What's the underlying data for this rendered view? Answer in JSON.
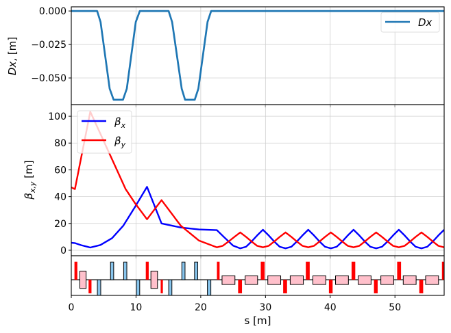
{
  "chart_data": [
    {
      "type": "line",
      "panel": "dispersion",
      "ylabel": {
        "symbol": "Dx",
        "unit": ", [m]"
      },
      "xlim": [
        0,
        57.6
      ],
      "ylim": [
        -0.0699,
        0.0031
      ],
      "yticks": [
        {
          "v": 0,
          "label": "0.000"
        },
        {
          "v": -0.025,
          "label": "−0.025"
        },
        {
          "v": -0.05,
          "label": "−0.050"
        }
      ],
      "grid": true,
      "legend": {
        "placement": "top-right",
        "entries": [
          {
            "label": "Dx",
            "color": "#1f77b4"
          }
        ]
      },
      "series": [
        {
          "name": "Dx",
          "color": "#1f77b4",
          "s": [
            0,
            3.99,
            4.52,
            5.93,
            6.54,
            7.98,
            8.58,
            9.96,
            10.59,
            15.04,
            15.57,
            17.06,
            17.58,
            19.07,
            19.63,
            21.05,
            21.61,
            57.6
          ],
          "y": [
            0,
            0,
            -0.0082,
            -0.058,
            -0.0663,
            -0.0663,
            -0.058,
            -0.0082,
            0,
            0,
            -0.0082,
            -0.058,
            -0.0663,
            -0.0663,
            -0.058,
            -0.0082,
            0,
            0
          ]
        }
      ]
    },
    {
      "type": "line",
      "panel": "beta",
      "ylabel": {
        "symbol": "β",
        "sub": "x,y",
        "unit": " [m]"
      },
      "xlim": [
        0,
        57.6
      ],
      "ylim": [
        -4.1,
        108.7
      ],
      "yticks": [
        {
          "v": 0,
          "label": "0"
        },
        {
          "v": 20,
          "label": "20"
        },
        {
          "v": 40,
          "label": "40"
        },
        {
          "v": 60,
          "label": "60"
        },
        {
          "v": 80,
          "label": "80"
        },
        {
          "v": 100,
          "label": "100"
        }
      ],
      "grid": true,
      "legend": {
        "placement": "top-left",
        "entries": [
          {
            "symbol": "β",
            "sub": "x",
            "color": "#0000ff"
          },
          {
            "symbol": "β",
            "sub": "y",
            "color": "#ff0000"
          }
        ]
      },
      "series": [
        {
          "name": "beta_x",
          "color": "#0000ff",
          "s": [
            0,
            0.6,
            1.5,
            2.93,
            4.5,
            6.3,
            8.05,
            9.8,
            11.7,
            13.95,
            16.9,
            19.7,
            22.5,
            23.6,
            25.0,
            26.1,
            27.0,
            27.85,
            28.7,
            29.6,
            30.5,
            31.35,
            32.2,
            33.1,
            34.0,
            34.85,
            35.7,
            36.6,
            37.5,
            38.35,
            39.2,
            40.1,
            41.0,
            41.85,
            42.7,
            43.6,
            44.5,
            45.35,
            46.2,
            47.1,
            48.0,
            48.85,
            49.7,
            50.6,
            51.5,
            52.35,
            53.2,
            54.1,
            55.0,
            55.85,
            56.7,
            57.6
          ],
          "y": [
            5.6,
            5.3,
            3.8,
            2.0,
            3.9,
            9.0,
            18.4,
            32,
            47.3,
            20,
            17,
            15.5,
            15,
            9.8,
            3.4,
            1.4,
            2.6,
            6.5,
            11,
            15.3,
            11,
            6.5,
            2.6,
            1.4,
            2.6,
            6.5,
            11,
            15.3,
            11,
            6.5,
            2.6,
            1.4,
            2.6,
            6.5,
            11,
            15.3,
            11,
            6.5,
            2.6,
            1.4,
            2.6,
            6.5,
            11,
            15.3,
            11,
            6.5,
            2.6,
            1.4,
            2.6,
            6.5,
            11,
            15.3
          ]
        },
        {
          "name": "beta_y",
          "color": "#ff0000",
          "s": [
            0,
            0.56,
            2.93,
            4.87,
            6.64,
            8.4,
            9.8,
            11.7,
            13.95,
            16.9,
            19.7,
            22.5,
            23.4,
            24.3,
            25.2,
            26.1,
            27.0,
            27.85,
            28.7,
            29.6,
            30.5,
            31.35,
            32.2,
            33.1,
            34.0,
            34.85,
            35.7,
            36.6,
            37.5,
            38.35,
            39.2,
            40.1,
            41.0,
            41.85,
            42.7,
            43.6,
            44.5,
            45.35,
            46.2,
            47.1,
            48.0,
            48.85,
            49.7,
            50.6,
            51.5,
            52.35,
            53.2,
            54.1,
            55.0,
            55.85,
            56.7,
            57.6
          ],
          "y": [
            47,
            45.6,
            103.4,
            83,
            64.3,
            45.6,
            35.4,
            23.1,
            37.4,
            18.4,
            7.3,
            2.2,
            3.3,
            6.5,
            10,
            13.3,
            10,
            6.5,
            3.3,
            2.2,
            3.3,
            6.5,
            10,
            13.3,
            10,
            6.5,
            3.3,
            2.2,
            3.3,
            6.5,
            10,
            13.3,
            10,
            6.5,
            3.3,
            2.2,
            3.3,
            6.5,
            10,
            13.3,
            10,
            6.5,
            3.3,
            2.2,
            3.3,
            6.5,
            10,
            13.3,
            10,
            6.5,
            3.3,
            2.2
          ]
        }
      ]
    },
    {
      "type": "lattice",
      "panel": "lattice",
      "xlabel": "s [m]",
      "xlim": [
        0,
        57.6
      ],
      "ylim": [
        -0.865,
        1.33
      ],
      "xticks": [
        {
          "v": 0,
          "label": "0"
        },
        {
          "v": 10,
          "label": "10"
        },
        {
          "v": 20,
          "label": "20"
        },
        {
          "v": 30,
          "label": "30"
        },
        {
          "v": 40,
          "label": "40"
        },
        {
          "v": 50,
          "label": "50"
        }
      ],
      "colors": {
        "quadrupole": "#ff0000",
        "dipole": "#87c4ec",
        "cavity": "#ffc0cb"
      },
      "elements": [
        {
          "kind": "quadrupole",
          "s0": 0.49,
          "s1": 0.94,
          "lo": 0,
          "hi": 1
        },
        {
          "kind": "cavity",
          "s0": 1.32,
          "s1": 2.29,
          "lo": -0.48,
          "hi": 0.48
        },
        {
          "kind": "quadrupole",
          "s0": 2.67,
          "s1": 3.12,
          "lo": -0.75,
          "hi": 0
        },
        {
          "kind": "dipole",
          "s0": 4.03,
          "s1": 4.55,
          "lo": -0.9,
          "hi": 0
        },
        {
          "kind": "dipole",
          "s0": 6.06,
          "s1": 6.55,
          "lo": 0,
          "hi": 0.98
        },
        {
          "kind": "dipole",
          "s0": 8.09,
          "s1": 8.58,
          "lo": 0,
          "hi": 0.98
        },
        {
          "kind": "dipole",
          "s0": 10.05,
          "s1": 10.57,
          "lo": -0.9,
          "hi": 0
        },
        {
          "kind": "quadrupole",
          "s0": 11.51,
          "s1": 11.96,
          "lo": 0,
          "hi": 1
        },
        {
          "kind": "cavity",
          "s0": 12.3,
          "s1": 13.32,
          "lo": -0.48,
          "hi": 0.48
        },
        {
          "kind": "quadrupole",
          "s0": 13.81,
          "s1": 14.15,
          "lo": -0.75,
          "hi": 0
        },
        {
          "kind": "dipole",
          "s0": 15.05,
          "s1": 15.54,
          "lo": -0.9,
          "hi": 0
        },
        {
          "kind": "dipole",
          "s0": 17.08,
          "s1": 17.57,
          "lo": 0,
          "hi": 0.98
        },
        {
          "kind": "dipole",
          "s0": 19.04,
          "s1": 19.53,
          "lo": 0,
          "hi": 0.98
        },
        {
          "kind": "dipole",
          "s0": 21.03,
          "s1": 21.56,
          "lo": -0.9,
          "hi": 0
        },
        {
          "kind": "quadrupole",
          "s0": 22.5,
          "s1": 22.91,
          "lo": 0,
          "hi": 1
        },
        {
          "kind": "cavity",
          "s0": 23.29,
          "s1": 25.28,
          "lo": -0.26,
          "hi": 0.22
        },
        {
          "kind": "quadrupole",
          "s0": 25.77,
          "s1": 26.37,
          "lo": -0.75,
          "hi": 0
        },
        {
          "kind": "cavity",
          "s0": 26.86,
          "s1": 28.78,
          "lo": -0.26,
          "hi": 0.22
        },
        {
          "kind": "quadrupole",
          "s0": 29.27,
          "s1": 29.87,
          "lo": 0,
          "hi": 1
        },
        {
          "kind": "cavity",
          "s0": 30.36,
          "s1": 32.35,
          "lo": -0.26,
          "hi": 0.22
        },
        {
          "kind": "quadrupole",
          "s0": 32.73,
          "s1": 33.33,
          "lo": -0.75,
          "hi": 0
        },
        {
          "kind": "cavity",
          "s0": 33.82,
          "s1": 35.85,
          "lo": -0.26,
          "hi": 0.22
        },
        {
          "kind": "quadrupole",
          "s0": 36.23,
          "s1": 36.83,
          "lo": 0,
          "hi": 1
        },
        {
          "kind": "cavity",
          "s0": 37.32,
          "s1": 39.32,
          "lo": -0.26,
          "hi": 0.22
        },
        {
          "kind": "quadrupole",
          "s0": 39.8,
          "s1": 40.37,
          "lo": -0.75,
          "hi": 0
        },
        {
          "kind": "cavity",
          "s0": 40.82,
          "s1": 42.81,
          "lo": -0.26,
          "hi": 0.22
        },
        {
          "kind": "quadrupole",
          "s0": 43.3,
          "s1": 43.87,
          "lo": 0,
          "hi": 1
        },
        {
          "kind": "cavity",
          "s0": 44.32,
          "s1": 46.31,
          "lo": -0.26,
          "hi": 0.22
        },
        {
          "kind": "quadrupole",
          "s0": 46.76,
          "s1": 47.33,
          "lo": -0.75,
          "hi": 0
        },
        {
          "kind": "cavity",
          "s0": 47.82,
          "s1": 49.81,
          "lo": -0.26,
          "hi": 0.22
        },
        {
          "kind": "quadrupole",
          "s0": 50.34,
          "s1": 50.94,
          "lo": 0,
          "hi": 1
        },
        {
          "kind": "cavity",
          "s0": 51.28,
          "s1": 53.27,
          "lo": -0.26,
          "hi": 0.22
        },
        {
          "kind": "quadrupole",
          "s0": 53.76,
          "s1": 54.36,
          "lo": -0.75,
          "hi": 0
        },
        {
          "kind": "cavity",
          "s0": 54.74,
          "s1": 56.73,
          "lo": -0.26,
          "hi": 0.22
        },
        {
          "kind": "quadrupole",
          "s0": 57.26,
          "s1": 57.67,
          "lo": 0,
          "hi": 1
        }
      ]
    }
  ]
}
